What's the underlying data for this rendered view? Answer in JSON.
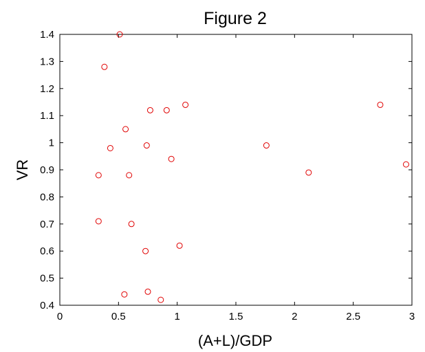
{
  "chart_data": {
    "type": "scatter",
    "title": "Figure 2",
    "xlabel": "(A+L)/GDP",
    "ylabel": "VR",
    "xlim": [
      0,
      3
    ],
    "ylim": [
      0.4,
      1.4
    ],
    "xticks": [
      0,
      0.5,
      1,
      1.5,
      2,
      2.5,
      3
    ],
    "xtick_labels": [
      "0",
      "0.5",
      "1",
      "1.5",
      "2",
      "2.5",
      "3"
    ],
    "yticks": [
      0.4,
      0.5,
      0.6,
      0.7,
      0.8,
      0.9,
      1.0,
      1.1,
      1.2,
      1.3,
      1.4
    ],
    "ytick_labels": [
      "0.4",
      "0.5",
      "0.6",
      "0.7",
      "0.8",
      "0.9",
      "1",
      "1.1",
      "1.2",
      "1.3",
      "1.4"
    ],
    "grid": false,
    "marker": "open-circle",
    "marker_color": "#e00000",
    "points": [
      {
        "x": 0.51,
        "y": 1.4
      },
      {
        "x": 0.38,
        "y": 1.28
      },
      {
        "x": 0.77,
        "y": 1.12
      },
      {
        "x": 0.91,
        "y": 1.12
      },
      {
        "x": 1.07,
        "y": 1.14
      },
      {
        "x": 0.56,
        "y": 1.05
      },
      {
        "x": 0.43,
        "y": 0.98
      },
      {
        "x": 0.74,
        "y": 0.99
      },
      {
        "x": 0.95,
        "y": 0.94
      },
      {
        "x": 0.33,
        "y": 0.88
      },
      {
        "x": 0.59,
        "y": 0.88
      },
      {
        "x": 0.33,
        "y": 0.71
      },
      {
        "x": 0.61,
        "y": 0.7
      },
      {
        "x": 1.02,
        "y": 0.62
      },
      {
        "x": 0.73,
        "y": 0.6
      },
      {
        "x": 0.55,
        "y": 0.44
      },
      {
        "x": 0.75,
        "y": 0.45
      },
      {
        "x": 0.86,
        "y": 0.42
      },
      {
        "x": 1.76,
        "y": 0.99
      },
      {
        "x": 2.12,
        "y": 0.89
      },
      {
        "x": 2.73,
        "y": 1.14
      },
      {
        "x": 2.95,
        "y": 0.92
      }
    ]
  }
}
